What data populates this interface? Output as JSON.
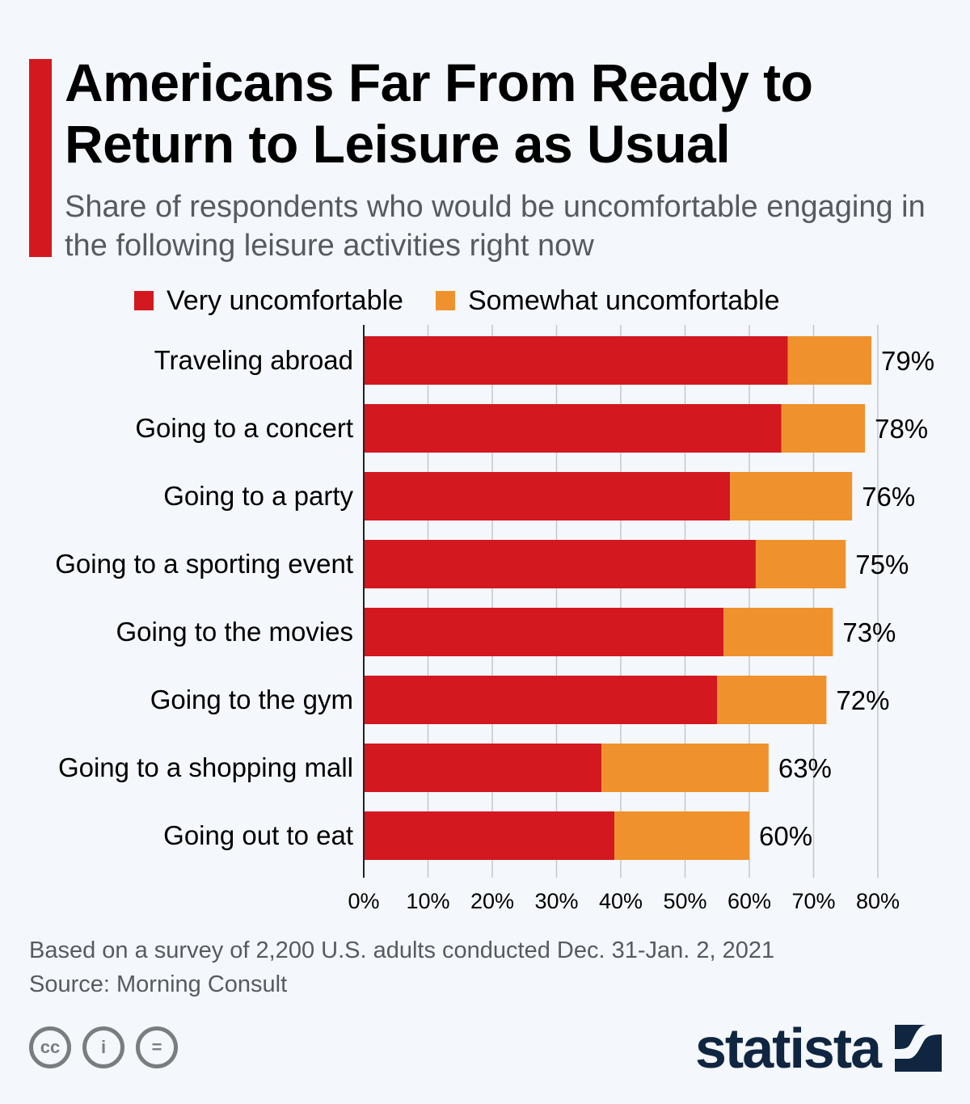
{
  "header": {
    "title": "Americans Far From Ready to Return to Leisure as Usual",
    "subtitle": "Share of respondents who would be uncomfortable engaging in the following leisure activities right now"
  },
  "legend": [
    {
      "label": "Very uncomfortable",
      "color": "#d31820"
    },
    {
      "label": "Somewhat uncomfortable",
      "color": "#ef922d"
    }
  ],
  "chart_data": {
    "type": "bar",
    "orientation": "horizontal",
    "stacked": true,
    "title": "Americans Far From Ready to Return to Leisure as Usual",
    "subtitle": "Share of respondents who would be uncomfortable engaging in the following leisure activities right now",
    "categories": [
      "Traveling abroad",
      "Going to a concert",
      "Going to a party",
      "Going to a sporting event",
      "Going to the movies",
      "Going to the gym",
      "Going to a shopping mall",
      "Going out to eat"
    ],
    "series": [
      {
        "name": "Very uncomfortable",
        "color": "#d31820",
        "values": [
          66,
          65,
          57,
          61,
          56,
          55,
          37,
          39
        ]
      },
      {
        "name": "Somewhat uncomfortable",
        "color": "#ef922d",
        "values": [
          13,
          13,
          19,
          14,
          17,
          17,
          26,
          21
        ]
      }
    ],
    "totals": [
      79,
      78,
      76,
      75,
      73,
      72,
      63,
      60
    ],
    "total_labels": [
      "79%",
      "78%",
      "76%",
      "75%",
      "73%",
      "72%",
      "63%",
      "60%"
    ],
    "xlabel": "",
    "ylabel": "",
    "xlim": [
      0,
      80
    ],
    "x_ticks": [
      0,
      10,
      20,
      30,
      40,
      50,
      60,
      70,
      80
    ],
    "x_tick_labels": [
      "0%",
      "10%",
      "20%",
      "30%",
      "40%",
      "50%",
      "60%",
      "70%",
      "80%"
    ],
    "grid": true,
    "legend_position": "top"
  },
  "footer": {
    "note": "Based on a survey of 2,200 U.S. adults conducted Dec. 31-Jan. 2, 2021",
    "source": "Source: Morning Consult",
    "license_icons": [
      {
        "name": "creative-commons-icon",
        "glyph": "cc"
      },
      {
        "name": "attribution-icon",
        "glyph": "i"
      },
      {
        "name": "no-derivatives-icon",
        "glyph": "="
      }
    ],
    "brand": "statista"
  }
}
